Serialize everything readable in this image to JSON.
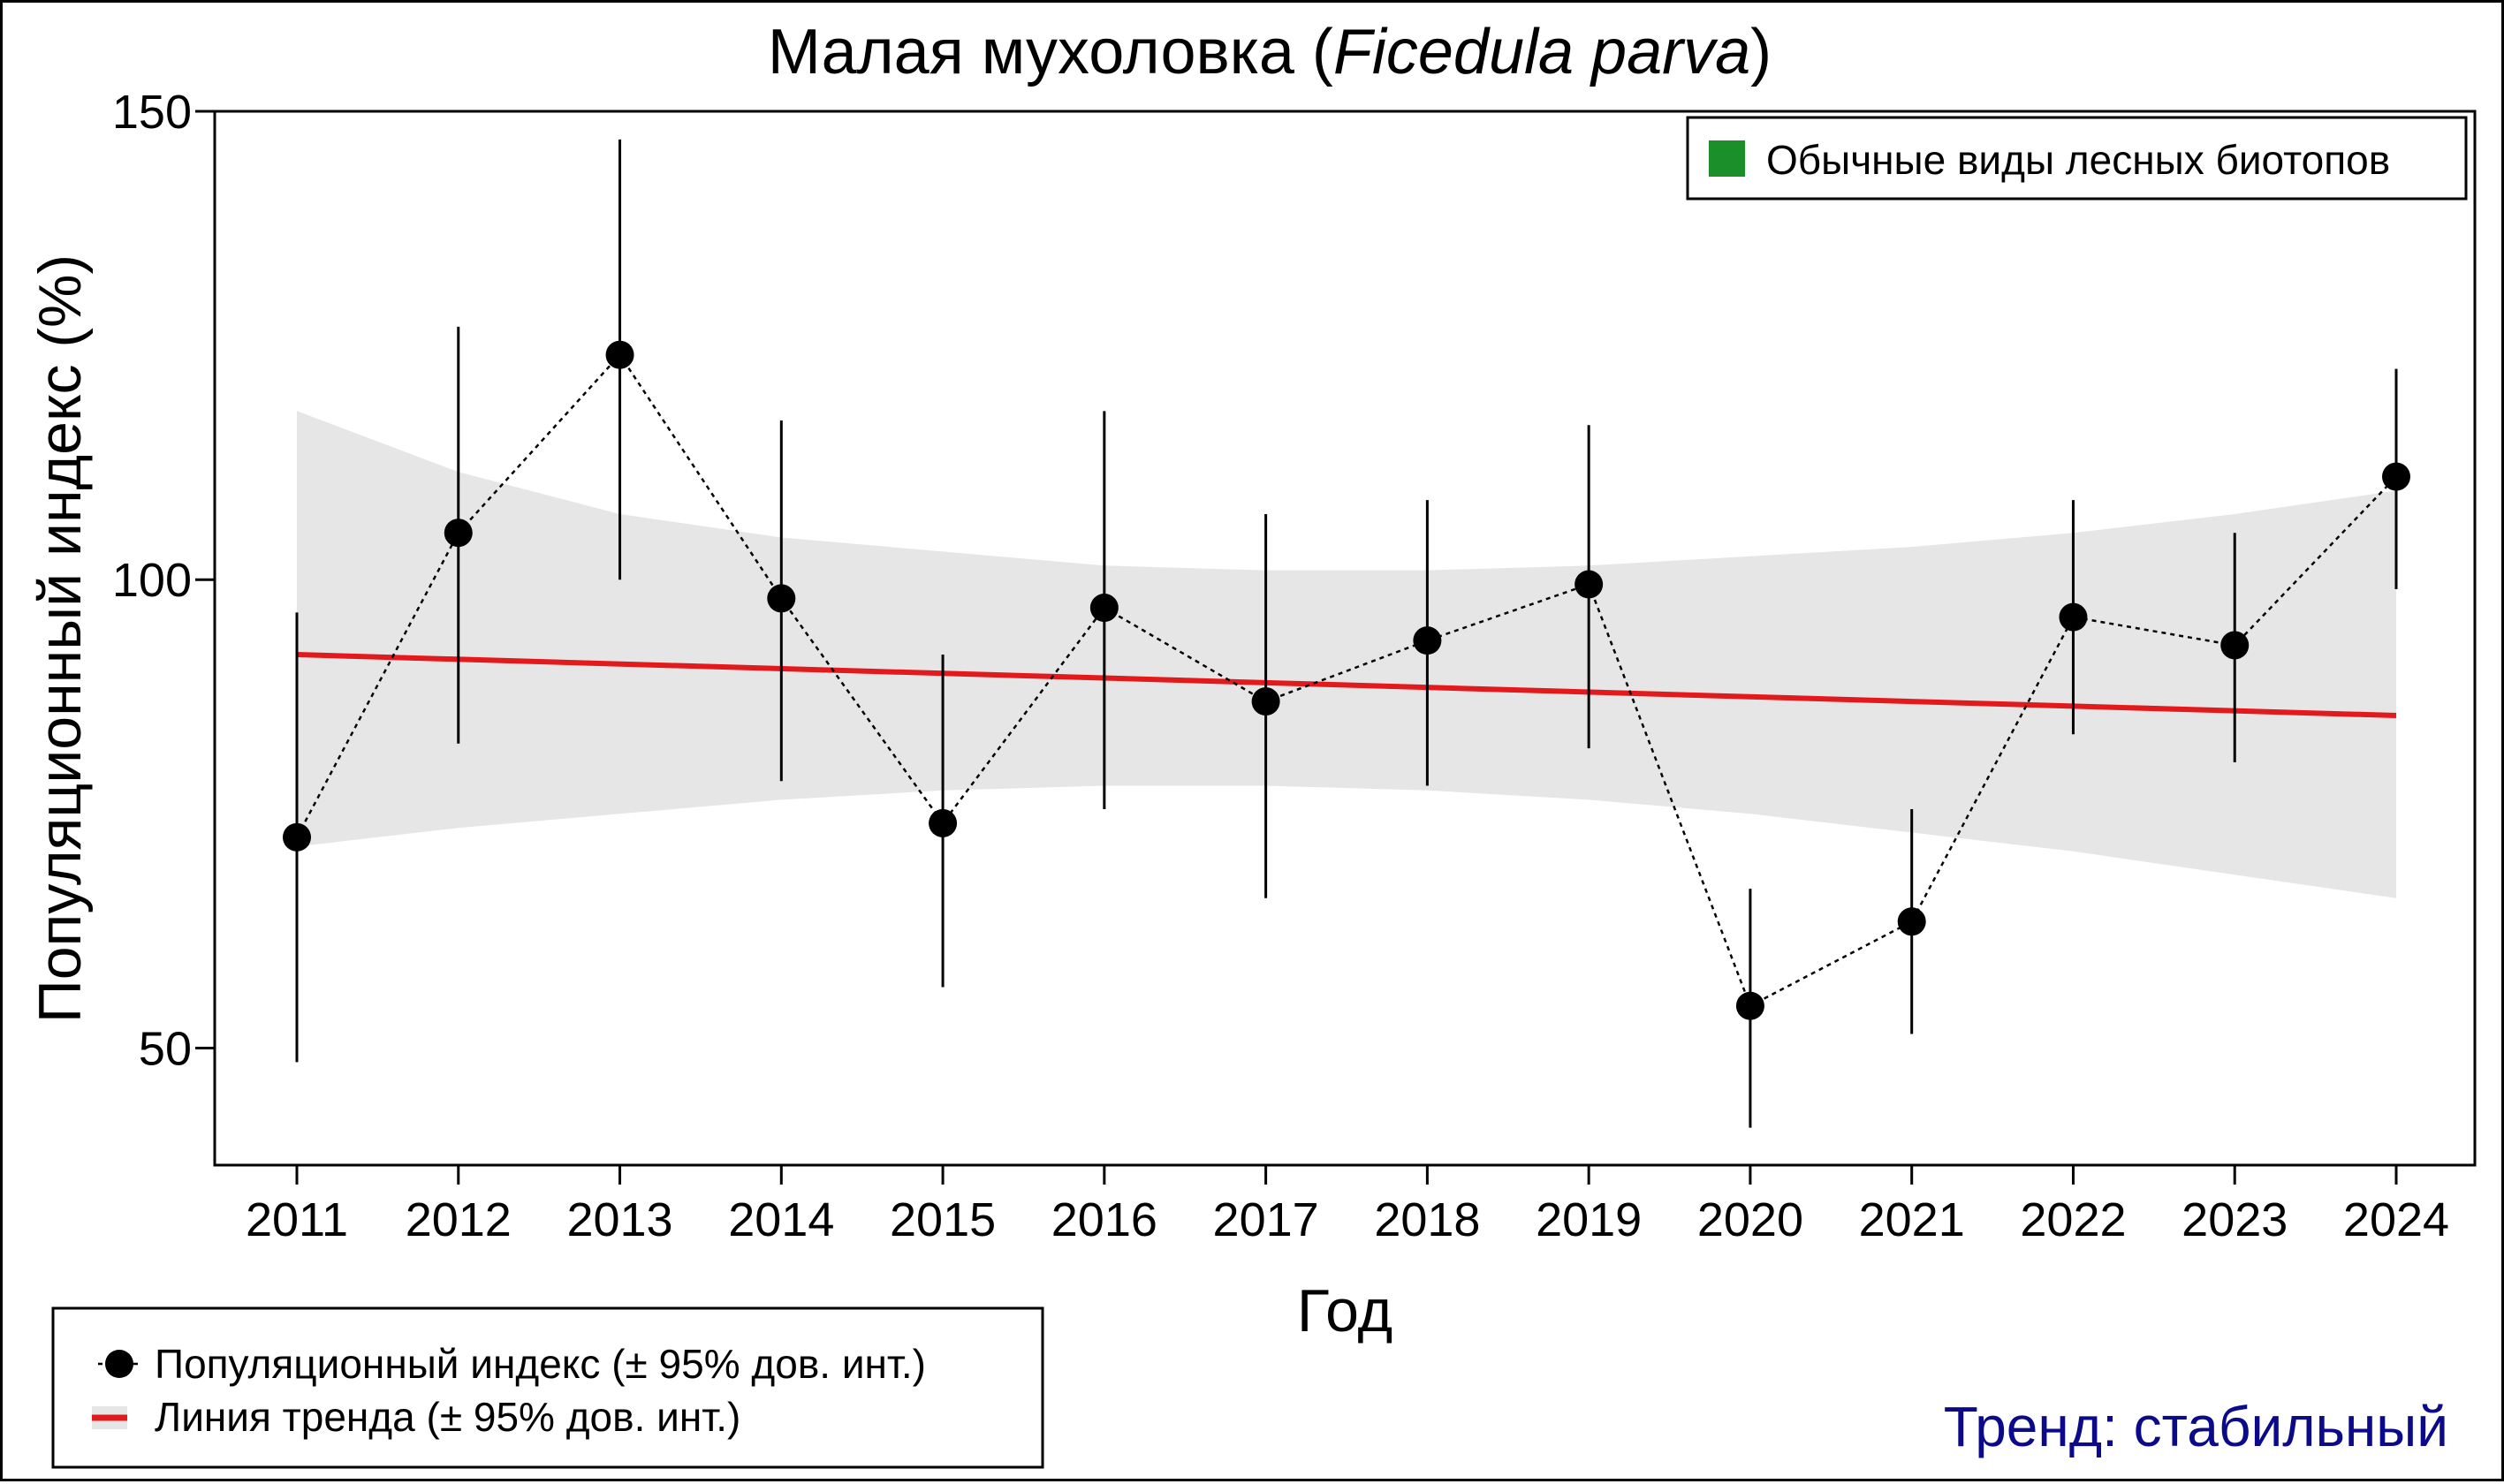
{
  "chart_data": {
    "type": "line",
    "title": {
      "prefix": "Малая мухоловка (",
      "italic": "Ficedula parva",
      "suffix": ")"
    },
    "xlabel": "Год",
    "ylabel": "Популяционный индекс (%)",
    "ylim": [
      37.5,
      150
    ],
    "yticks": [
      50,
      100,
      150
    ],
    "categories": [
      "2011",
      "2012",
      "2013",
      "2014",
      "2015",
      "2016",
      "2017",
      "2018",
      "2019",
      "2020",
      "2021",
      "2022",
      "2023",
      "2024"
    ],
    "series": [
      {
        "name": "Популяционный индекс (± 95% дов. инт.)",
        "values": [
          72.5,
          105,
          124,
          98,
          74,
          97,
          87,
          93.5,
          99.5,
          54.5,
          63.5,
          96,
          93,
          111
        ],
        "ci_low": [
          48.5,
          82.5,
          100,
          78.5,
          56.5,
          75.5,
          66,
          78,
          82,
          41.5,
          51.5,
          83.5,
          80.5,
          99
        ],
        "ci_high": [
          96.5,
          127,
          147,
          117,
          92,
          118,
          107,
          108.5,
          116.5,
          67,
          75.5,
          108.5,
          105,
          122.5
        ]
      }
    ],
    "trend": {
      "name": "Линия тренда (± 95% дов. инт.)",
      "start": 92,
      "end": 85.5,
      "band_low": [
        71.5,
        73.5,
        75,
        76.5,
        77.5,
        78,
        78,
        77.5,
        76.5,
        75,
        73,
        71,
        68.5,
        66
      ],
      "band_high": [
        118,
        111.5,
        107,
        104.5,
        103,
        101.5,
        101,
        101,
        101.5,
        102.5,
        103.5,
        105,
        107,
        109.5
      ]
    },
    "colors": {
      "points": "#000000",
      "trend": "#e31a1c",
      "band": "#e6e6e6",
      "habitat": "#1a8f2a",
      "status_text": "#0b0b8a"
    },
    "habitat_legend": "Обычные виды лесных биотопов",
    "status_label": "Тренд: стабильный"
  }
}
